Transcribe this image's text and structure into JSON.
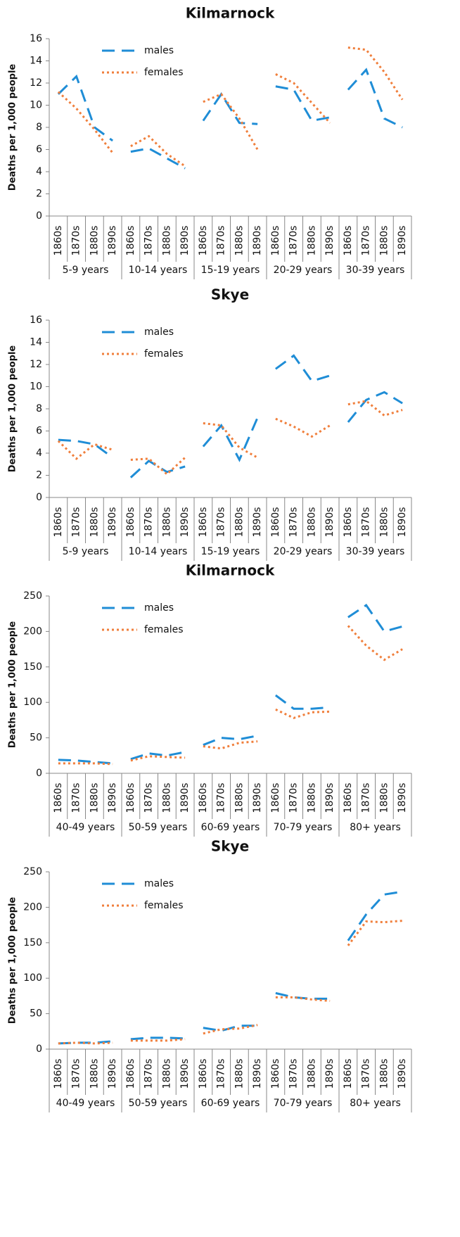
{
  "chart_data": [
    {
      "type": "line",
      "title": "Kilmarnock",
      "y_label": "Deaths per 1,000 people",
      "groups": [
        "5-9 years",
        "10-14 years",
        "15-19 years",
        "20-29 years",
        "30-39 years"
      ],
      "categories": [
        "1860s",
        "1870s",
        "1880s",
        "1890s",
        "1860s",
        "1870s",
        "1880s",
        "1890s",
        "1860s",
        "1870s",
        "1880s",
        "1890s",
        "1860s",
        "1870s",
        "1880s",
        "1890s",
        "1860s",
        "1870s",
        "1880s",
        "1890s"
      ],
      "ylim": [
        0,
        16
      ],
      "yticks": [
        0,
        2,
        4,
        6,
        8,
        10,
        12,
        14,
        16
      ],
      "series": [
        {
          "name": "males",
          "color": "#1f8dd6",
          "values": [
            11,
            12.6,
            8,
            6.8,
            5.8,
            6.1,
            5.2,
            4.3,
            8.6,
            11,
            8.4,
            8.3,
            11.7,
            11.4,
            8.6,
            8.9,
            11.4,
            13.2,
            8.8,
            8.0
          ]
        },
        {
          "name": "females",
          "color": "#f07f3c",
          "values": [
            11.2,
            9.7,
            7.8,
            5.7,
            6.3,
            7.2,
            5.6,
            4.5,
            10.3,
            11.0,
            8.8,
            6.0,
            12.8,
            12.0,
            10.2,
            8.4,
            15.2,
            15.0,
            13.0,
            10.5
          ]
        }
      ]
    },
    {
      "type": "line",
      "title": "Skye",
      "y_label": "Deaths per 1,000 people",
      "groups": [
        "5-9 years",
        "10-14 years",
        "15-19 years",
        "20-29 years",
        "30-39 years"
      ],
      "categories": [
        "1860s",
        "1870s",
        "1880s",
        "1890s",
        "1860s",
        "1870s",
        "1880s",
        "1890s",
        "1860s",
        "1870s",
        "1880s",
        "1890s",
        "1860s",
        "1870s",
        "1880s",
        "1890s",
        "1860s",
        "1870s",
        "1880s",
        "1890s"
      ],
      "ylim": [
        0,
        16
      ],
      "yticks": [
        0,
        2,
        4,
        6,
        8,
        10,
        12,
        14,
        16
      ],
      "series": [
        {
          "name": "males",
          "color": "#1f8dd6",
          "values": [
            5.2,
            5.1,
            4.8,
            3.6,
            1.8,
            3.3,
            2.3,
            2.8,
            4.6,
            6.5,
            3.4,
            7.2,
            11.6,
            12.8,
            10.5,
            11.0,
            6.8,
            8.8,
            9.5,
            8.5
          ]
        },
        {
          "name": "females",
          "color": "#f07f3c",
          "values": [
            5.1,
            3.5,
            4.8,
            4.3,
            3.4,
            3.5,
            2.1,
            3.6,
            6.7,
            6.5,
            4.5,
            3.6,
            7.1,
            6.4,
            5.5,
            6.5,
            8.4,
            8.7,
            7.4,
            7.9
          ]
        }
      ]
    },
    {
      "type": "line",
      "title": "Kilmarnock",
      "y_label": "Deaths per 1,000 people",
      "groups": [
        "40-49 years",
        "50-59 years",
        "60-69 years",
        "70-79 years",
        "80+ years"
      ],
      "categories": [
        "1860s",
        "1870s",
        "1880s",
        "1890s",
        "1860s",
        "1870s",
        "1880s",
        "1890s",
        "1860s",
        "1870s",
        "1880s",
        "1890s",
        "1860s",
        "1870s",
        "1880s",
        "1890s",
        "1860s",
        "1870s",
        "1880s",
        "1890s"
      ],
      "ylim": [
        0,
        250
      ],
      "yticks": [
        0,
        50,
        100,
        150,
        200,
        250
      ],
      "series": [
        {
          "name": "males",
          "color": "#1f8dd6",
          "values": [
            19,
            18,
            16,
            14,
            20,
            28,
            25,
            30,
            40,
            50,
            48,
            53,
            110,
            91,
            91,
            93,
            220,
            237,
            200,
            207
          ]
        },
        {
          "name": "females",
          "color": "#f07f3c",
          "values": [
            14,
            14,
            14,
            13,
            18,
            24,
            23,
            22,
            38,
            35,
            43,
            45,
            90,
            78,
            86,
            87,
            208,
            180,
            160,
            175
          ]
        }
      ]
    },
    {
      "type": "line",
      "title": "Skye",
      "y_label": "Deaths per 1,000 people",
      "groups": [
        "40-49 years",
        "50-59 years",
        "60-69 years",
        "70-79 years",
        "80+ years"
      ],
      "categories": [
        "1860s",
        "1870s",
        "1880s",
        "1890s",
        "1860s",
        "1870s",
        "1880s",
        "1890s",
        "1860s",
        "1870s",
        "1880s",
        "1890s",
        "1860s",
        "1870s",
        "1880s",
        "1890s",
        "1860s",
        "1870s",
        "1880s",
        "1890s"
      ],
      "ylim": [
        0,
        250
      ],
      "yticks": [
        0,
        50,
        100,
        150,
        200,
        250
      ],
      "series": [
        {
          "name": "males",
          "color": "#1f8dd6",
          "values": [
            8,
            9,
            9,
            11,
            14,
            16,
            16,
            15,
            30,
            26,
            33,
            33,
            79,
            73,
            71,
            71,
            153,
            190,
            218,
            222
          ]
        },
        {
          "name": "females",
          "color": "#f07f3c",
          "values": [
            8,
            9,
            8,
            9,
            12,
            12,
            12,
            14,
            22,
            28,
            29,
            34,
            73,
            73,
            70,
            68,
            146,
            180,
            179,
            181
          ]
        }
      ]
    }
  ]
}
